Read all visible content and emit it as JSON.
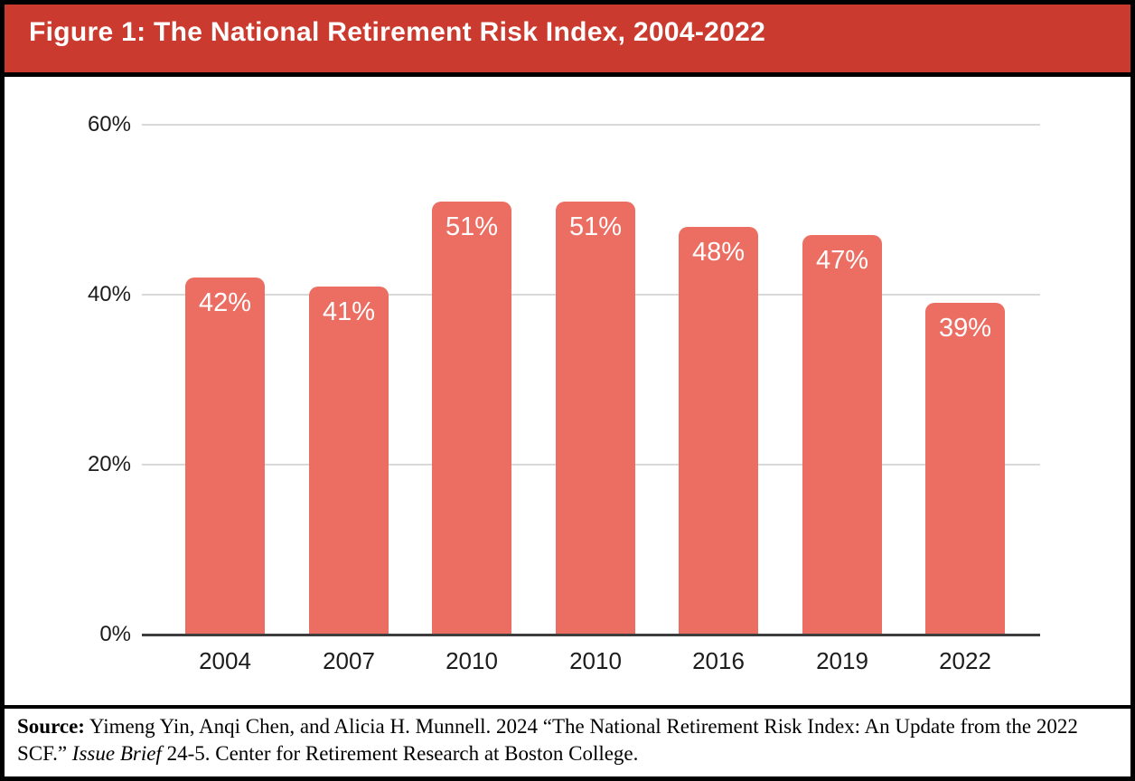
{
  "header": {
    "title": "Figure 1: The National Retirement Risk Index, 2004-2022",
    "background_color": "#cb3a2e",
    "text_color": "#ffffff"
  },
  "chart_data": {
    "type": "bar",
    "title": "Figure 1: The National Retirement Risk Index, 2004-2022",
    "categories": [
      "2004",
      "2007",
      "2010",
      "2010",
      "2016",
      "2019",
      "2022"
    ],
    "values": [
      42,
      41,
      51,
      51,
      48,
      47,
      39
    ],
    "data_labels": [
      "42%",
      "41%",
      "51%",
      "51%",
      "48%",
      "47%",
      "39%"
    ],
    "y_ticks": [
      "0%",
      "20%",
      "40%",
      "60%"
    ],
    "y_tick_values": [
      0,
      20,
      40,
      60
    ],
    "ylim": [
      0,
      60
    ],
    "xlabel": "",
    "ylabel": "",
    "grid": "horizontal",
    "legend": "none",
    "bar_color": "#ec6d61",
    "data_label_color": "#ffffff",
    "gridline_color": "#d9d9d9",
    "axis_line_color": "#3d3d3d",
    "data_label_position": "inside-top"
  },
  "footer": {
    "source_label": "Source:",
    "text_before_italic": " Yimeng Yin, Anqi Chen, and Alicia H. Munnell. 2024 “The National Retirement Risk Index: An Update from the 2022 SCF.” ",
    "italic_text": "Issue Brief",
    "text_after_italic": " 24-5. Center for Retirement Research at Boston College."
  }
}
